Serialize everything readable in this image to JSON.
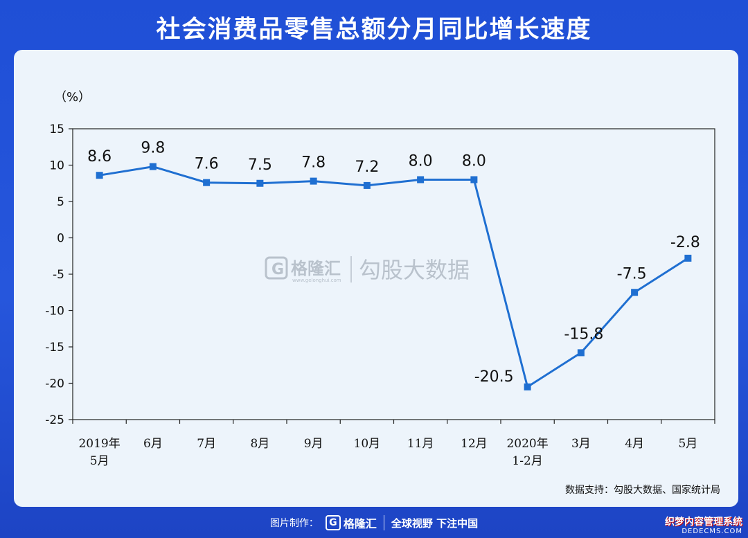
{
  "header": {
    "title": "社会消费品零售总额分月同比增长速度"
  },
  "chart_data": {
    "type": "line",
    "unit_label": "（%）",
    "categories": [
      [
        "2019年",
        "5月"
      ],
      [
        "6月"
      ],
      [
        "7月"
      ],
      [
        "8月"
      ],
      [
        "9月"
      ],
      [
        "10月"
      ],
      [
        "11月"
      ],
      [
        "12月"
      ],
      [
        "2020年",
        "1-2月"
      ],
      [
        "3月"
      ],
      [
        "4月"
      ],
      [
        "5月"
      ]
    ],
    "series": [
      {
        "values": [
          8.6,
          9.8,
          7.6,
          7.5,
          7.8,
          7.2,
          8.0,
          8.0,
          -20.5,
          -15.8,
          -7.5,
          -2.8
        ],
        "data_labels": [
          "8.6",
          "9.8",
          "7.6",
          "7.5",
          "7.8",
          "7.2",
          "8.0",
          "8.0",
          "-20.5",
          "-15.8",
          "-7.5",
          "-2.8"
        ],
        "color": "#1f6fd1"
      }
    ],
    "ylim": [
      -25,
      15
    ],
    "yticks": [
      15,
      10,
      5,
      0,
      -5,
      -10,
      -15,
      -20,
      -25
    ],
    "grid": false
  },
  "source_note": "数据支持：勾股大数据、国家统计局",
  "watermark": {
    "brand": "格隆汇",
    "brand_sub": "www.gelonghui.com",
    "text": "勾股大数据"
  },
  "footer": {
    "made_by": "图片制作：",
    "brand": "格隆汇",
    "slogan": "全球视野 下注中国"
  },
  "corner": {
    "line1": "织梦内容管理系统",
    "line2": "DEDECMS.COM"
  },
  "colors": {
    "background": "#2656dc",
    "card": "#edf4fb",
    "line": "#1f6fd1",
    "text": "#111111"
  }
}
